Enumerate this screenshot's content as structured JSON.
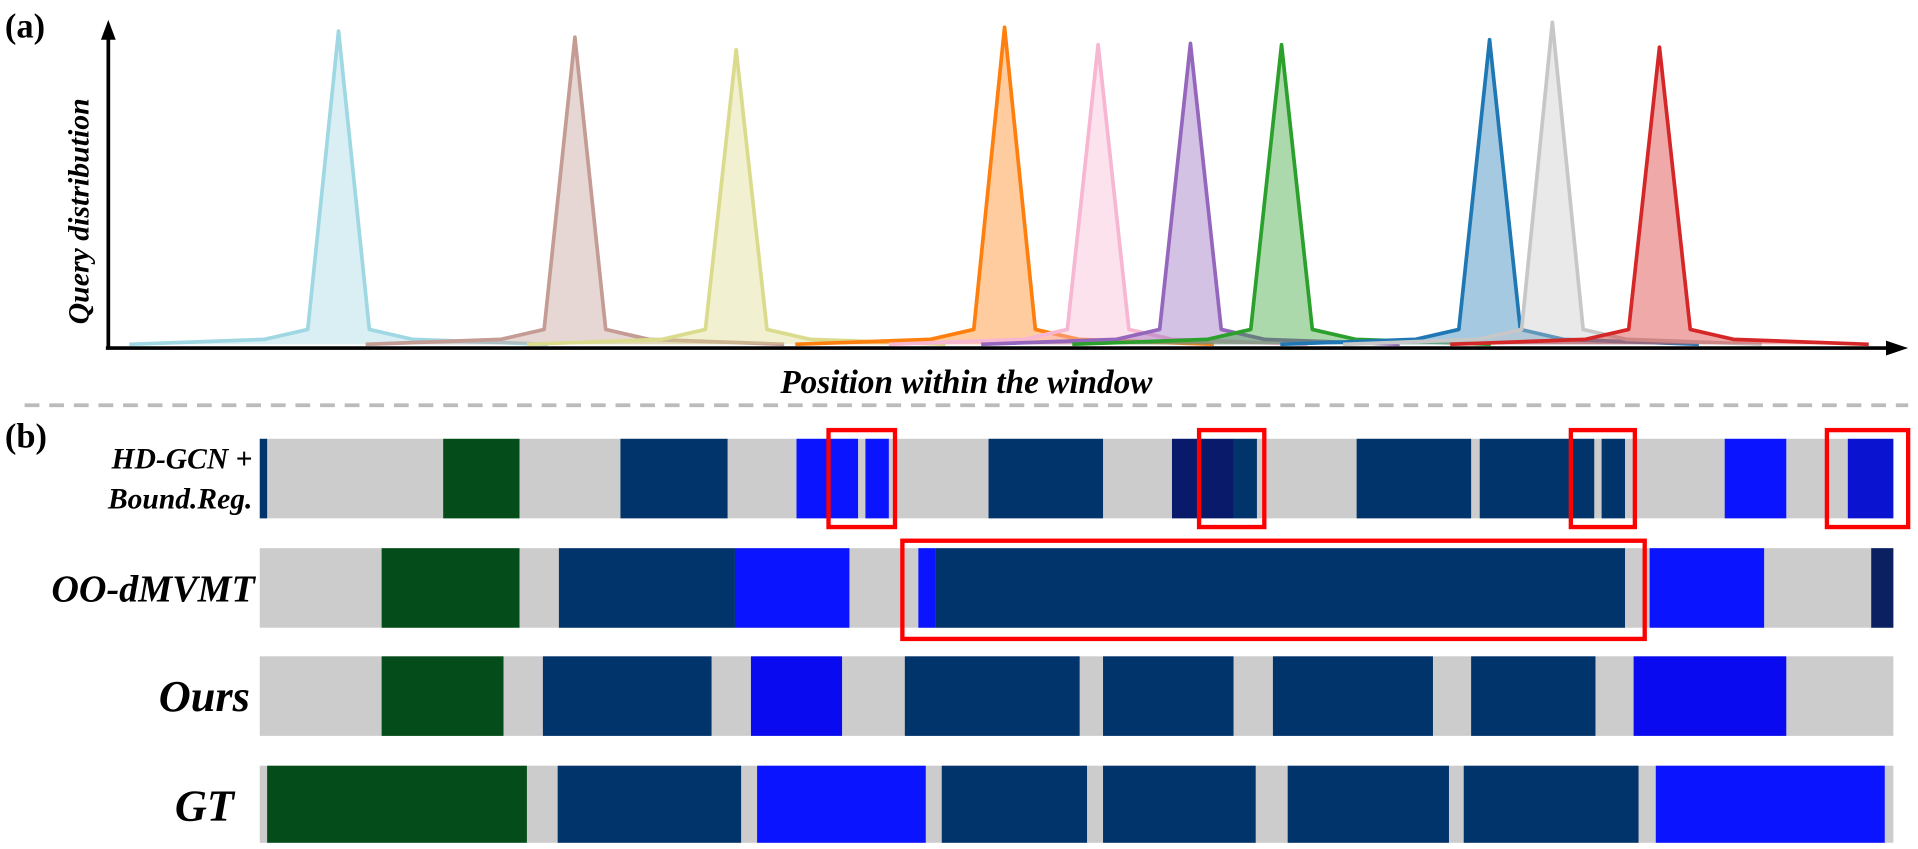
{
  "panel_a": {
    "label": "(a)",
    "y_axis_label": "Query distribution",
    "x_axis_label": "Position within the window"
  },
  "panel_b": {
    "label": "(b)",
    "rows": [
      {
        "label_lines": [
          "HD-GCN +",
          "Bound.Reg."
        ]
      },
      {
        "label_lines": [
          "OO-dMVMT"
        ]
      },
      {
        "label_lines": [
          "Ours"
        ]
      },
      {
        "label_lines": [
          "GT"
        ]
      }
    ]
  }
}
